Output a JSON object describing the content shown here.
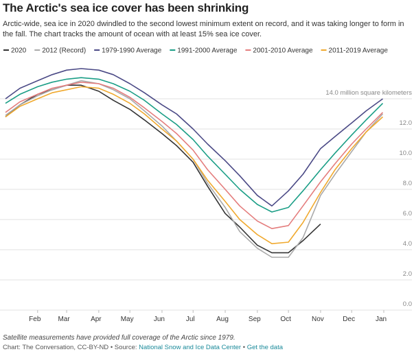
{
  "chart_data": {
    "type": "line",
    "title": "The Arctic's sea ice cover has been shrinking",
    "subtitle": "Arctic-wide, sea ice in 2020 dwindled to the second lowest minimum extent on record, and it was taking longer to form in the fall. The chart tracks the amount of ocean with at least 15% sea ice cover.",
    "x": [
      1,
      15,
      32,
      46,
      60,
      74,
      91,
      105,
      121,
      135,
      152,
      166,
      182,
      196,
      213,
      227,
      244,
      258,
      274,
      288,
      305,
      319,
      335,
      349,
      365
    ],
    "xlim": [
      1,
      366
    ],
    "xticks": [
      {
        "value": 32,
        "label": "Feb"
      },
      {
        "value": 60,
        "label": "Mar"
      },
      {
        "value": 91,
        "label": "Apr"
      },
      {
        "value": 121,
        "label": "May"
      },
      {
        "value": 152,
        "label": "Jun"
      },
      {
        "value": 182,
        "label": "Jul"
      },
      {
        "value": 213,
        "label": "Aug"
      },
      {
        "value": 244,
        "label": "Sep"
      },
      {
        "value": 274,
        "label": "Oct"
      },
      {
        "value": 305,
        "label": "Nov"
      },
      {
        "value": 335,
        "label": "Dec"
      },
      {
        "value": 366,
        "label": "Jan"
      }
    ],
    "ylim": [
      0,
      16.5
    ],
    "yticks": [
      {
        "value": 0,
        "label": "0.0"
      },
      {
        "value": 2,
        "label": "2.0"
      },
      {
        "value": 4,
        "label": "4.0"
      },
      {
        "value": 6,
        "label": "6.0"
      },
      {
        "value": 8,
        "label": "8.0"
      },
      {
        "value": 10,
        "label": "10.0"
      },
      {
        "value": 12,
        "label": "12.0"
      },
      {
        "value": 14,
        "label": "14.0 million square kilometers"
      }
    ],
    "grid": true,
    "series": [
      {
        "name": "2020",
        "color": "#333333",
        "values": [
          12.8,
          13.6,
          14.3,
          14.6,
          14.9,
          14.9,
          14.5,
          13.9,
          13.3,
          12.6,
          11.7,
          10.9,
          9.8,
          8.2,
          6.4,
          5.5,
          4.3,
          3.8,
          3.8,
          4.6,
          5.7,
          null,
          null,
          null,
          null
        ]
      },
      {
        "name": "2012 (Record)",
        "color": "#aaaaaa",
        "values": [
          12.9,
          13.6,
          14.2,
          14.6,
          14.9,
          15.2,
          15.0,
          14.6,
          14.0,
          13.2,
          12.2,
          11.2,
          10.0,
          8.4,
          6.8,
          5.2,
          4.1,
          3.5,
          3.5,
          4.8,
          7.6,
          9.0,
          10.5,
          11.8,
          13.0
        ]
      },
      {
        "name": "1979-1990 Average",
        "color": "#4b4a86",
        "values": [
          14.0,
          14.7,
          15.2,
          15.6,
          15.9,
          16.0,
          15.9,
          15.6,
          15.0,
          14.4,
          13.6,
          13.0,
          12.0,
          11.0,
          9.9,
          8.9,
          7.6,
          6.9,
          7.9,
          9.0,
          10.7,
          11.5,
          12.4,
          13.2,
          14.0
        ]
      },
      {
        "name": "1991-2000 Average",
        "color": "#1a9e86",
        "values": [
          13.7,
          14.3,
          14.8,
          15.1,
          15.3,
          15.4,
          15.3,
          15.0,
          14.5,
          13.9,
          13.0,
          12.3,
          11.3,
          10.2,
          9.0,
          8.0,
          7.0,
          6.5,
          6.8,
          7.9,
          9.3,
          10.4,
          11.6,
          12.6,
          13.7
        ]
      },
      {
        "name": "2001-2010 Average",
        "color": "#e47d7d",
        "values": [
          13.1,
          13.8,
          14.3,
          14.7,
          14.9,
          15.1,
          15.0,
          14.7,
          14.1,
          13.4,
          12.5,
          11.7,
          10.6,
          9.3,
          8.0,
          6.9,
          5.9,
          5.4,
          5.6,
          6.9,
          8.5,
          9.7,
          11.0,
          12.0,
          13.1
        ]
      },
      {
        "name": "2011-2019 Average",
        "color": "#f0a92e",
        "values": [
          12.8,
          13.5,
          14.0,
          14.4,
          14.6,
          14.8,
          14.7,
          14.3,
          13.7,
          13.0,
          12.0,
          11.2,
          10.0,
          8.6,
          7.2,
          6.0,
          5.0,
          4.4,
          4.5,
          5.8,
          7.8,
          9.3,
          10.7,
          11.8,
          12.8
        ]
      }
    ],
    "legend": "top",
    "note": "Satellite measurements have provided full coverage of the Arctic since 1979.",
    "credit": [
      "Chart: The Conversation, CC-BY-ND",
      "•",
      "Source:",
      "National Snow and Ice Data Center",
      "•",
      "Get the data"
    ]
  }
}
